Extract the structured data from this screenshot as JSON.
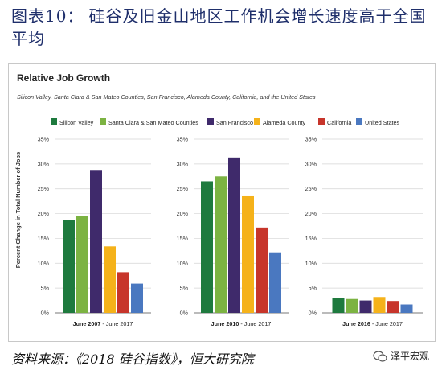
{
  "heading": {
    "label": "图表10：",
    "text": "硅谷及旧金山地区工作机会增长速度高于全国平均"
  },
  "chart_data": {
    "type": "bar",
    "title": "Relative Job Growth",
    "subtitle": "Silicon Valley, Santa Clara & San Mateo Counties, San Francisco, Alameda County, California, and the United States",
    "ylabel": "Percent Change in Total Number of Jobs",
    "ylim": [
      0,
      35
    ],
    "yticks": [
      "0%",
      "5%",
      "10%",
      "15%",
      "20%",
      "25%",
      "30%",
      "35%"
    ],
    "legend_position": "top",
    "grid": true,
    "panels": [
      {
        "label_bold": "June 2007",
        "label_rest": " - June 2017",
        "values": [
          18.7,
          19.5,
          28.8,
          13.4,
          8.2,
          5.9
        ]
      },
      {
        "label_bold": "June 2010",
        "label_rest": " - June 2017",
        "values": [
          26.5,
          27.5,
          31.3,
          23.5,
          17.2,
          12.2
        ]
      },
      {
        "label_bold": "June 2016",
        "label_rest": " - June 2017",
        "values": [
          3.0,
          2.8,
          2.5,
          3.2,
          2.4,
          1.7
        ]
      }
    ],
    "series": [
      {
        "name": "Silicon Valley",
        "color": "#1e7a3e"
      },
      {
        "name": "Santa Clara & San Mateo Counties",
        "color": "#7cb342"
      },
      {
        "name": "San Francisco",
        "color": "#3f2a6b"
      },
      {
        "name": "Alameda County",
        "color": "#f5b21a"
      },
      {
        "name": "California",
        "color": "#c7352b"
      },
      {
        "name": "United States",
        "color": "#4a78c0"
      }
    ]
  },
  "source": "资料来源：《2018 硅谷指数》，恒大研究院",
  "watermark": "泽平宏观"
}
